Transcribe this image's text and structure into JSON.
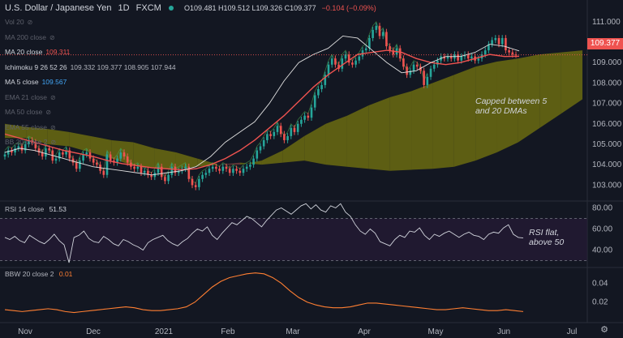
{
  "header": {
    "symbol": "U.S. Dollar / Japanese Yen",
    "interval": "1D",
    "exchange": "FXCM",
    "ohlc": "O109.481 H109.512 L109.326 C109.377",
    "change": "−0.104 (−0.09%)"
  },
  "legends": [
    {
      "label": "Vol 20",
      "value": "",
      "color": "#5d606b",
      "hidden": true
    },
    {
      "label": "MA 200 close",
      "value": "",
      "color": "#5d606b",
      "hidden": true
    },
    {
      "label": "MA 20 close",
      "value": "109.311",
      "color": "#ef5350",
      "hidden": false
    },
    {
      "label": "Ichimoku 9 26 52 26",
      "value": "109.332 109.377 108.905 107.944",
      "color": "#b2b5be",
      "hidden": false
    },
    {
      "label": "MA 5 close",
      "value": "109.567",
      "color": "#42a5f5",
      "hidden": false
    },
    {
      "label": "EMA 21 close",
      "value": "",
      "color": "#5d606b",
      "hidden": true
    },
    {
      "label": "MA 50 close",
      "value": "",
      "color": "#5d606b",
      "hidden": true
    },
    {
      "label": "EMA 55 close",
      "value": "",
      "color": "#5d606b",
      "hidden": true
    },
    {
      "label": "BB 20 close 2",
      "value": "",
      "color": "#5d606b",
      "hidden": true
    }
  ],
  "price_tag": "109.377",
  "annotations": {
    "price": "Capped between 5\nand 20 DMAs",
    "rsi": "RSI flat,\nabove 50"
  },
  "rsi_legend": {
    "label": "RSI 14 close",
    "value": "51.53"
  },
  "bbw_legend": {
    "label": "BBW 20 close 2",
    "value": "0.01"
  },
  "colors": {
    "bg": "#131722",
    "up": "#26a69a",
    "down": "#ef5350",
    "ma20": "#ef5350",
    "ma5": "#e0e0e0",
    "cloud_bull": "#6b6b10",
    "cloud_bear": "#6e3b3b",
    "rsi": "#d1d4dc",
    "bbw": "#ff7f32",
    "grid": "#2a2e39"
  },
  "chart_data": [
    {
      "type": "candlestick",
      "title": "U.S. Dollar / Japanese Yen 1D FXCM",
      "ylim": [
        102.3,
        111.35
      ],
      "y_ticks": [
        103,
        104,
        105,
        106,
        107,
        108,
        109,
        110,
        111
      ],
      "x_ticks": [
        "Nov",
        "Dec",
        "2021",
        "Feb",
        "Mar",
        "Apr",
        "May",
        "Jun",
        "Jul"
      ],
      "closes": [
        104.5,
        104.7,
        104.6,
        104.8,
        104.9,
        104.7,
        105.0,
        105.2,
        105.1,
        104.8,
        104.6,
        104.4,
        104.8,
        104.7,
        104.2,
        104.3,
        104.6,
        104.5,
        104.7,
        104.3,
        104.1,
        103.8,
        104.2,
        104.5,
        104.6,
        104.3,
        104.1,
        104.0,
        103.7,
        103.5,
        104.5,
        104.2,
        104.1,
        104.3,
        104.6,
        104.4,
        104.1,
        103.9,
        103.8,
        103.9,
        103.6,
        103.7,
        103.5,
        103.4,
        103.6,
        103.9,
        103.4,
        103.2,
        103.5,
        103.9,
        103.6,
        103.7,
        103.8,
        103.9,
        103.3,
        103.0,
        102.9,
        103.3,
        103.5,
        103.6,
        103.8,
        103.9,
        103.8,
        103.7,
        103.9,
        103.8,
        103.6,
        103.8,
        103.7,
        103.6,
        103.8,
        103.9,
        104.0,
        104.3,
        104.7,
        104.9,
        105.2,
        105.5,
        105.4,
        105.6,
        105.9,
        105.5,
        105.2,
        105.4,
        105.8,
        105.6,
        106.0,
        106.2,
        106.4,
        106.3,
        106.8,
        107.4,
        107.7,
        107.9,
        108.4,
        108.9,
        109.2,
        108.9,
        108.7,
        109.2,
        109.4,
        109.0,
        108.9,
        109.1,
        109.3,
        109.6,
        109.7,
        110.2,
        110.6,
        110.8,
        110.3,
        110.5,
        109.8,
        109.6,
        109.4,
        109.7,
        109.2,
        108.8,
        108.4,
        108.6,
        108.9,
        108.8,
        108.6,
        107.9,
        108.3,
        108.7,
        108.9,
        109.1,
        109.3,
        109.2,
        109.3,
        109.2,
        109.4,
        109.1,
        109.3,
        109.4,
        109.2,
        109.3,
        109.1,
        109.2,
        109.4,
        109.6,
        109.9,
        110.1,
        110.2,
        109.9,
        110.2,
        109.6,
        109.5,
        109.4,
        109.38
      ],
      "ma20": [
        105.5,
        105.3,
        105.1,
        104.9,
        104.7,
        104.55,
        104.4,
        104.2,
        104.05,
        103.95,
        103.85,
        103.8,
        103.75,
        103.8,
        104.0,
        104.3,
        104.7,
        105.2,
        105.8,
        106.4,
        107.1,
        107.8,
        108.4,
        108.9,
        109.4,
        109.5,
        109.6,
        109.5,
        109.2,
        109.0,
        108.9,
        109.0,
        109.2,
        109.4,
        109.3,
        109.31
      ],
      "ma5": [
        104.6,
        104.8,
        104.7,
        104.5,
        104.3,
        104.1,
        103.9,
        103.8,
        103.7,
        103.6,
        103.5,
        103.6,
        103.7,
        103.9,
        104.4,
        105.1,
        105.6,
        106.1,
        107.0,
        108.1,
        109.0,
        109.4,
        109.7,
        110.3,
        110.2,
        109.6,
        109.0,
        108.5,
        108.6,
        109.0,
        109.3,
        109.3,
        109.5,
        109.9,
        109.8,
        109.57
      ],
      "cloud_top": [
        106.0,
        105.85,
        105.75,
        105.6,
        105.4,
        105.2,
        105.1,
        104.8,
        104.6,
        104.3,
        104.0,
        104.0,
        104.2,
        104.7,
        105.4,
        106.0,
        106.4,
        106.9,
        107.3,
        107.6,
        108.0,
        108.4,
        108.8,
        109.05,
        109.2,
        109.4,
        109.5,
        109.6
      ],
      "cloud_bottom": [
        105.3,
        105.3,
        105.0,
        104.9,
        104.6,
        104.3,
        103.95,
        103.85,
        103.8,
        103.9,
        104.0,
        104.1,
        104.0,
        104.1,
        104.2,
        104.0,
        103.9,
        103.8,
        103.7,
        103.75,
        103.8,
        103.9,
        104.2,
        104.6,
        105.1,
        105.8,
        106.5,
        107.2
      ],
      "cloud_x": [
        "Oct-30",
        "Nov-12",
        "Nov-26",
        "Dec-10",
        "Dec-24",
        "Jan-07",
        "Jan-21",
        "Feb-04",
        "Feb-18",
        "Mar-04",
        "Mar-18",
        "Apr-01",
        "Apr-15",
        "Apr-29",
        "May-13",
        "May-27",
        "Jun-10",
        "Jun-24",
        "Jul-08"
      ]
    },
    {
      "type": "line",
      "title": "RSI 14 close",
      "ylim": [
        25,
        85
      ],
      "y_ticks": [
        40,
        60,
        80
      ],
      "bands": [
        30,
        70
      ],
      "values": [
        52,
        50,
        53,
        49,
        47,
        54,
        51,
        48,
        46,
        50,
        55,
        49,
        45,
        28,
        52,
        54,
        58,
        51,
        48,
        47,
        53,
        50,
        46,
        44,
        50,
        48,
        45,
        43,
        40,
        47,
        50,
        52,
        54,
        49,
        46,
        44,
        48,
        51,
        56,
        60,
        58,
        62,
        54,
        50,
        56,
        61,
        66,
        64,
        68,
        72,
        70,
        66,
        62,
        68,
        73,
        78,
        80,
        77,
        74,
        78,
        82,
        84,
        79,
        83,
        78,
        76,
        82,
        80,
        84,
        76,
        72,
        64,
        58,
        55,
        60,
        56,
        48,
        46,
        44,
        50,
        54,
        52,
        58,
        57,
        61,
        54,
        50,
        55,
        53,
        56,
        58,
        55,
        52,
        55,
        57,
        54,
        53,
        50,
        55,
        57,
        56,
        61,
        64,
        55,
        52,
        51.53
      ],
      "value": 51.53
    },
    {
      "type": "area",
      "title": "BBW 20 close 2",
      "ylim": [
        0,
        0.055
      ],
      "y_ticks": [
        0.02,
        0.04
      ],
      "values": [
        0.012,
        0.011,
        0.01,
        0.011,
        0.012,
        0.013,
        0.012,
        0.01,
        0.009,
        0.01,
        0.011,
        0.012,
        0.013,
        0.014,
        0.015,
        0.014,
        0.012,
        0.011,
        0.011,
        0.012,
        0.013,
        0.015,
        0.02,
        0.028,
        0.036,
        0.042,
        0.046,
        0.048,
        0.05,
        0.051,
        0.05,
        0.046,
        0.04,
        0.032,
        0.025,
        0.02,
        0.017,
        0.015,
        0.014,
        0.014,
        0.015,
        0.017,
        0.019,
        0.019,
        0.018,
        0.017,
        0.016,
        0.015,
        0.014,
        0.013,
        0.012,
        0.012,
        0.013,
        0.014,
        0.013,
        0.012,
        0.011,
        0.011,
        0.012,
        0.011,
        0.01
      ],
      "value": 0.01
    }
  ]
}
